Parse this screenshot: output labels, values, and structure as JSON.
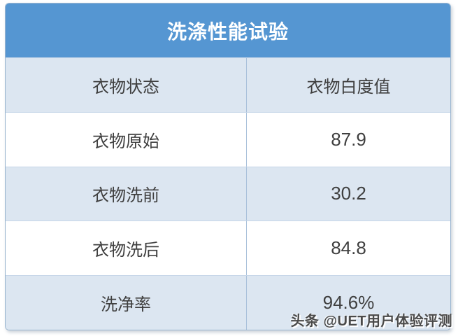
{
  "chart_data": {
    "type": "table",
    "title": "洗涤性能试验",
    "columns": [
      "衣物状态",
      "衣物白度值"
    ],
    "rows": [
      [
        "衣物原始",
        "87.9"
      ],
      [
        "衣物洗前",
        "30.2"
      ],
      [
        "衣物洗后",
        "84.8"
      ],
      [
        "洗净率",
        "94.6%"
      ]
    ]
  },
  "watermark": {
    "text": "头条 @UET用户体验评测"
  },
  "colors": {
    "header_blue": "#5596d2",
    "row_light_blue": "#dce6f1",
    "row_white": "#ffffff",
    "text_dark": "#3f3f3f",
    "title_text": "#ffffff",
    "divider": "#a9c0da"
  }
}
